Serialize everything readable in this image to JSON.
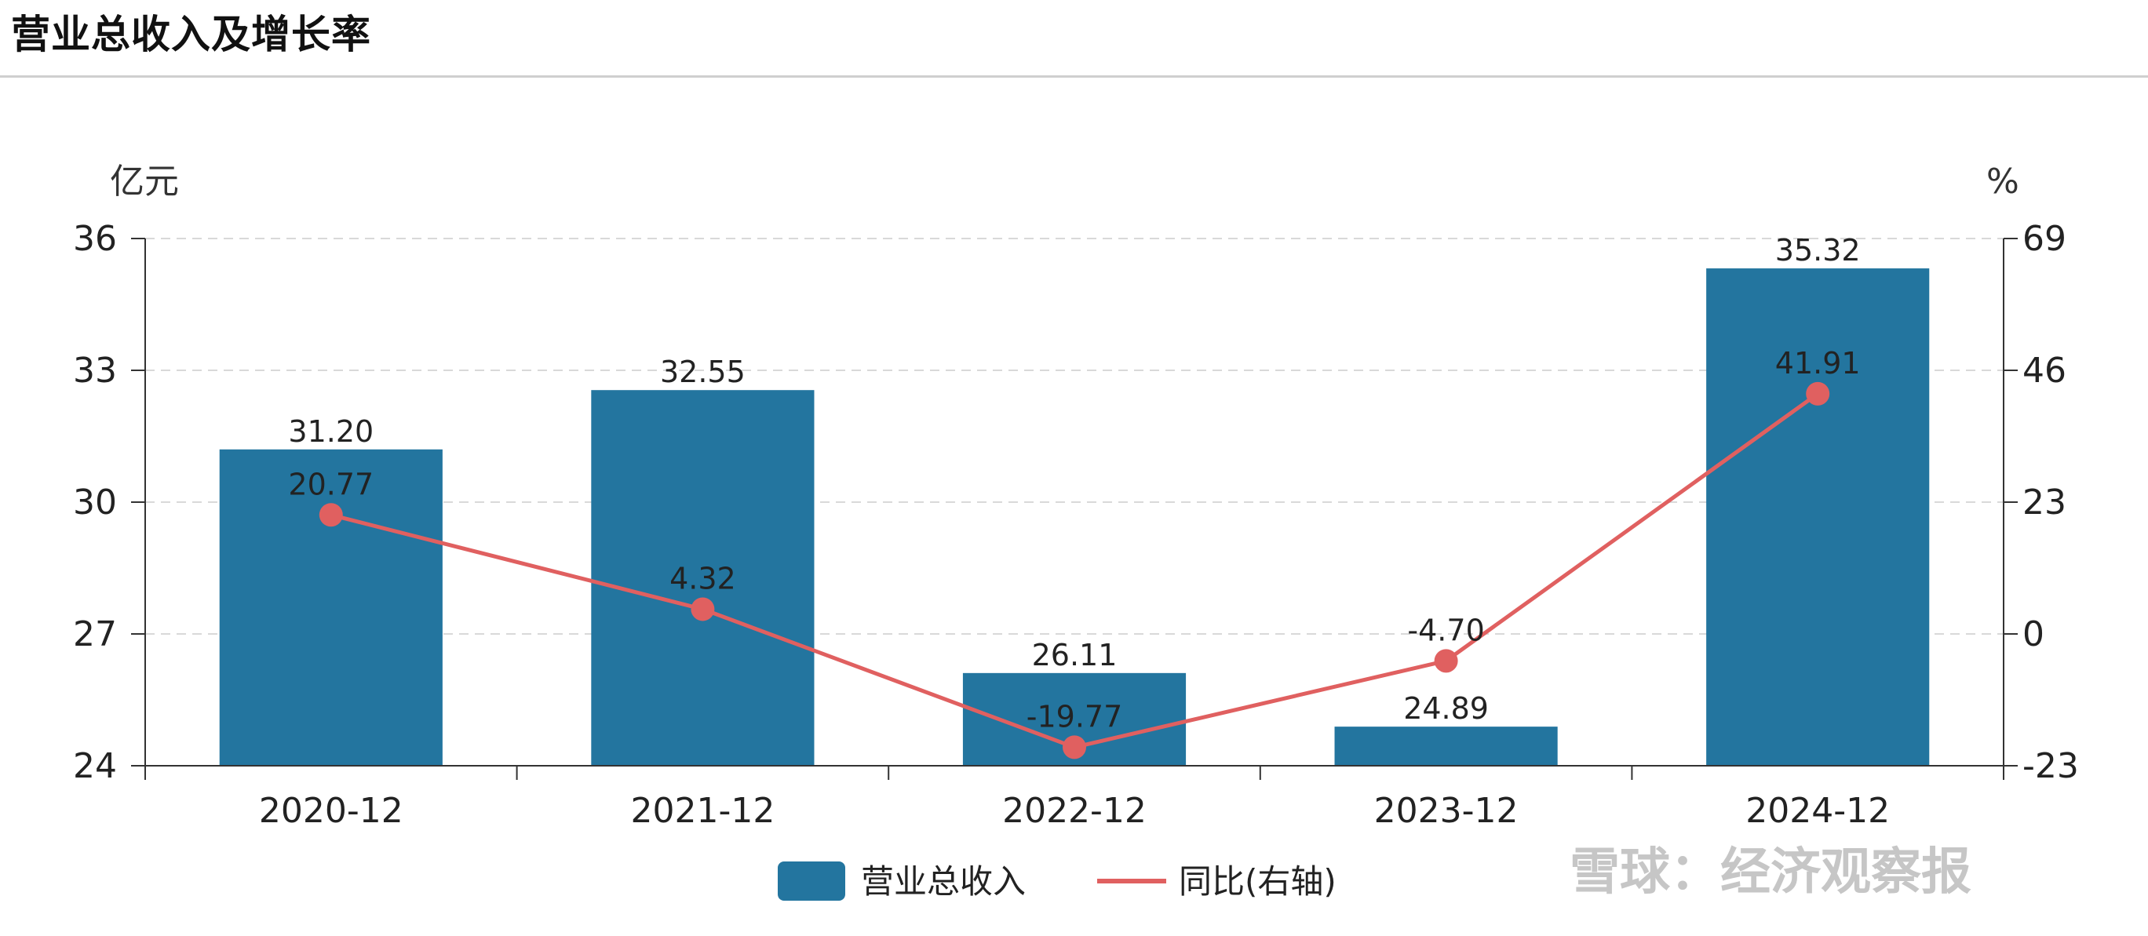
{
  "page_title": "营业总收入及增长率",
  "watermark": "雪球：经济观察报",
  "colors": {
    "bar": "#23759f",
    "line": "#e06060",
    "grid": "#d9d9d9",
    "axis": "#333333"
  },
  "chart_data": {
    "type": "bar",
    "title": "营业总收入及增长率",
    "categories": [
      "2020-12",
      "2021-12",
      "2022-12",
      "2023-12",
      "2024-12"
    ],
    "y_left": {
      "unit": "亿元",
      "ylim": [
        24,
        36
      ],
      "ticks": [
        24,
        27,
        30,
        33,
        36
      ]
    },
    "y_right": {
      "unit": "%",
      "ylim": [
        -23,
        69
      ],
      "ticks": [
        -23,
        0,
        23,
        46,
        69
      ]
    },
    "series": [
      {
        "name": "营业总收入",
        "type": "bar",
        "axis": "left",
        "values": [
          31.2,
          32.55,
          26.11,
          24.89,
          35.32
        ],
        "labels": [
          "31.20",
          "32.55",
          "26.11",
          "24.89",
          "35.32"
        ]
      },
      {
        "name": "同比(右轴)",
        "type": "line",
        "axis": "right",
        "values": [
          20.77,
          4.32,
          -19.77,
          -4.7,
          41.91
        ],
        "labels": [
          "20.77",
          "4.32",
          "-19.77",
          "-4.70",
          "41.91"
        ]
      }
    ],
    "grid": true,
    "legend": "bottom-center"
  }
}
